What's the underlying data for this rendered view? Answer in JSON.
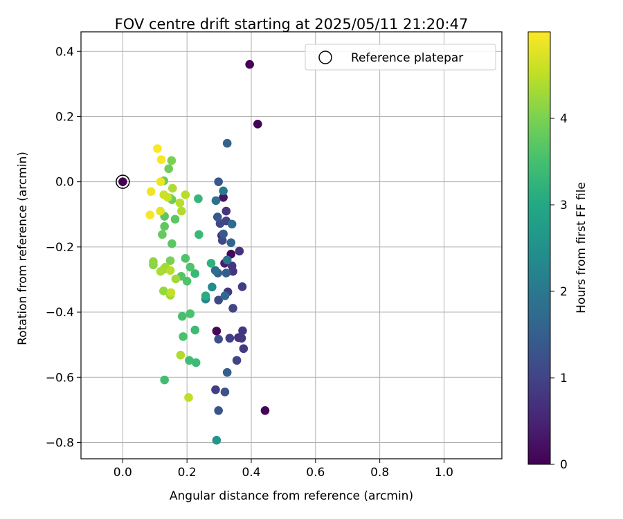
{
  "chart_data": {
    "type": "scatter",
    "title": "FOV centre drift starting at 2025/05/11 21:20:47",
    "xlabel": "Angular distance from reference (arcmin)",
    "ylabel": "Rotation from reference (arcmin)",
    "xlim": [
      -0.13,
      1.18
    ],
    "ylim": [
      -0.85,
      0.46
    ],
    "xticks": [
      0.0,
      0.2,
      0.4,
      0.6,
      0.8,
      1.0
    ],
    "xtick_labels": [
      "0.0",
      "0.2",
      "0.4",
      "0.6",
      "0.8",
      "1.0"
    ],
    "yticks": [
      0.4,
      0.2,
      0.0,
      -0.2,
      -0.4,
      -0.6,
      -0.8
    ],
    "ytick_labels": [
      "0.4",
      "0.2",
      "0.0",
      "−0.2",
      "−0.4",
      "−0.6",
      "−0.8"
    ],
    "grid": true,
    "legend": {
      "position": "top-right",
      "label": "Reference platepar"
    },
    "reference_point": {
      "x": 0.0,
      "y": 0.0
    },
    "colorbar": {
      "label": "Hours from first FF file",
      "range": [
        0,
        5
      ],
      "ticks": [
        0,
        1,
        2,
        3,
        4
      ],
      "tick_labels": [
        "0",
        "1",
        "2",
        "3",
        "4"
      ],
      "colormap": "viridis"
    },
    "series": [
      {
        "name": "FOV centre drift",
        "points": [
          {
            "x": 0.0,
            "y": 0.0,
            "t": 0.0
          },
          {
            "x": 0.395,
            "y": 0.36,
            "t": 0.05
          },
          {
            "x": 0.42,
            "y": 0.177,
            "t": 0.05
          },
          {
            "x": 0.443,
            "y": -0.702,
            "t": 0.05
          },
          {
            "x": 0.292,
            "y": -0.458,
            "t": 0.08
          },
          {
            "x": 0.337,
            "y": -0.222,
            "t": 0.12
          },
          {
            "x": 0.313,
            "y": -0.048,
            "t": 0.25
          },
          {
            "x": 0.317,
            "y": -0.25,
            "t": 0.4
          },
          {
            "x": 0.308,
            "y": -0.165,
            "t": 0.6
          },
          {
            "x": 0.363,
            "y": -0.213,
            "t": 0.7
          },
          {
            "x": 0.36,
            "y": -0.478,
            "t": 0.7
          },
          {
            "x": 0.343,
            "y": -0.275,
            "t": 0.75
          },
          {
            "x": 0.322,
            "y": -0.09,
            "t": 0.75
          },
          {
            "x": 0.327,
            "y": -0.338,
            "t": 0.8
          },
          {
            "x": 0.34,
            "y": -0.258,
            "t": 0.8
          },
          {
            "x": 0.373,
            "y": -0.457,
            "t": 0.8
          },
          {
            "x": 0.37,
            "y": -0.48,
            "t": 0.8
          },
          {
            "x": 0.376,
            "y": -0.512,
            "t": 0.85
          },
          {
            "x": 0.372,
            "y": -0.322,
            "t": 0.9
          },
          {
            "x": 0.333,
            "y": -0.48,
            "t": 0.9
          },
          {
            "x": 0.289,
            "y": -0.638,
            "t": 0.9
          },
          {
            "x": 0.355,
            "y": -0.548,
            "t": 1.0
          },
          {
            "x": 0.343,
            "y": -0.388,
            "t": 1.0
          },
          {
            "x": 0.322,
            "y": -0.12,
            "t": 1.0
          },
          {
            "x": 0.303,
            "y": -0.128,
            "t": 1.05
          },
          {
            "x": 0.31,
            "y": -0.18,
            "t": 1.1
          },
          {
            "x": 0.298,
            "y": -0.363,
            "t": 1.1
          },
          {
            "x": 0.298,
            "y": -0.483,
            "t": 1.2
          },
          {
            "x": 0.318,
            "y": -0.645,
            "t": 1.25
          },
          {
            "x": 0.298,
            "y": -0.702,
            "t": 1.3
          },
          {
            "x": 0.298,
            "y": 0.0,
            "t": 1.35
          },
          {
            "x": 0.295,
            "y": -0.108,
            "t": 1.35
          },
          {
            "x": 0.313,
            "y": -0.16,
            "t": 1.4
          },
          {
            "x": 0.322,
            "y": -0.28,
            "t": 1.45
          },
          {
            "x": 0.296,
            "y": -0.28,
            "t": 1.5
          },
          {
            "x": 0.325,
            "y": -0.585,
            "t": 1.5
          },
          {
            "x": 0.325,
            "y": 0.118,
            "t": 1.55
          },
          {
            "x": 0.337,
            "y": -0.187,
            "t": 1.6
          },
          {
            "x": 0.318,
            "y": -0.35,
            "t": 1.7
          },
          {
            "x": 0.34,
            "y": -0.13,
            "t": 1.75
          },
          {
            "x": 0.288,
            "y": -0.272,
            "t": 1.8
          },
          {
            "x": 0.29,
            "y": -0.058,
            "t": 1.85
          },
          {
            "x": 0.325,
            "y": -0.24,
            "t": 1.95
          },
          {
            "x": 0.313,
            "y": -0.028,
            "t": 2.05
          },
          {
            "x": 0.258,
            "y": -0.36,
            "t": 2.3
          },
          {
            "x": 0.278,
            "y": -0.323,
            "t": 2.4
          },
          {
            "x": 0.292,
            "y": -0.793,
            "t": 2.6
          },
          {
            "x": 0.258,
            "y": -0.35,
            "t": 3.1
          },
          {
            "x": 0.275,
            "y": -0.25,
            "t": 3.2
          },
          {
            "x": 0.235,
            "y": -0.052,
            "t": 3.3
          },
          {
            "x": 0.237,
            "y": -0.162,
            "t": 3.35
          },
          {
            "x": 0.225,
            "y": -0.282,
            "t": 3.35
          },
          {
            "x": 0.225,
            "y": -0.455,
            "t": 3.4
          },
          {
            "x": 0.228,
            "y": -0.555,
            "t": 3.4
          },
          {
            "x": 0.13,
            "y": -0.608,
            "t": 3.45
          },
          {
            "x": 0.207,
            "y": -0.548,
            "t": 3.45
          },
          {
            "x": 0.185,
            "y": -0.413,
            "t": 3.5
          },
          {
            "x": 0.21,
            "y": -0.405,
            "t": 3.55
          },
          {
            "x": 0.188,
            "y": -0.475,
            "t": 3.55
          },
          {
            "x": 0.195,
            "y": -0.235,
            "t": 3.6
          },
          {
            "x": 0.2,
            "y": -0.305,
            "t": 3.6
          },
          {
            "x": 0.182,
            "y": -0.29,
            "t": 3.65
          },
          {
            "x": 0.21,
            "y": -0.262,
            "t": 3.6
          },
          {
            "x": 0.153,
            "y": -0.19,
            "t": 3.7
          },
          {
            "x": 0.13,
            "y": -0.106,
            "t": 3.7
          },
          {
            "x": 0.163,
            "y": -0.115,
            "t": 3.7
          },
          {
            "x": 0.13,
            "y": -0.137,
            "t": 3.75
          },
          {
            "x": 0.123,
            "y": -0.162,
            "t": 3.8
          },
          {
            "x": 0.147,
            "y": -0.05,
            "t": 3.8
          },
          {
            "x": 0.153,
            "y": -0.055,
            "t": 3.85
          },
          {
            "x": 0.128,
            "y": 0.003,
            "t": 3.85
          },
          {
            "x": 0.143,
            "y": 0.04,
            "t": 3.9
          },
          {
            "x": 0.152,
            "y": 0.065,
            "t": 4.0
          },
          {
            "x": 0.148,
            "y": -0.242,
            "t": 4.0
          },
          {
            "x": 0.128,
            "y": -0.268,
            "t": 4.05
          },
          {
            "x": 0.095,
            "y": -0.255,
            "t": 4.1
          },
          {
            "x": 0.095,
            "y": -0.245,
            "t": 4.15
          },
          {
            "x": 0.127,
            "y": -0.335,
            "t": 4.2
          },
          {
            "x": 0.148,
            "y": -0.348,
            "t": 4.25
          },
          {
            "x": 0.165,
            "y": -0.298,
            "t": 4.3
          },
          {
            "x": 0.133,
            "y": -0.262,
            "t": 4.3
          },
          {
            "x": 0.118,
            "y": -0.275,
            "t": 4.35
          },
          {
            "x": 0.18,
            "y": -0.532,
            "t": 4.4
          },
          {
            "x": 0.148,
            "y": -0.272,
            "t": 4.45
          },
          {
            "x": 0.155,
            "y": -0.02,
            "t": 4.4
          },
          {
            "x": 0.178,
            "y": -0.065,
            "t": 4.45
          },
          {
            "x": 0.183,
            "y": -0.09,
            "t": 4.4
          },
          {
            "x": 0.195,
            "y": -0.04,
            "t": 4.45
          },
          {
            "x": 0.205,
            "y": -0.662,
            "t": 4.5
          },
          {
            "x": 0.15,
            "y": -0.34,
            "t": 4.55
          },
          {
            "x": 0.128,
            "y": -0.04,
            "t": 4.6
          },
          {
            "x": 0.14,
            "y": -0.048,
            "t": 4.6
          },
          {
            "x": 0.117,
            "y": -0.09,
            "t": 4.8
          },
          {
            "x": 0.118,
            "y": 0.0,
            "t": 4.85
          },
          {
            "x": 0.088,
            "y": -0.03,
            "t": 4.9
          },
          {
            "x": 0.085,
            "y": -0.102,
            "t": 4.95
          },
          {
            "x": 0.12,
            "y": 0.068,
            "t": 4.95
          },
          {
            "x": 0.108,
            "y": 0.102,
            "t": 4.98
          }
        ]
      }
    ]
  }
}
